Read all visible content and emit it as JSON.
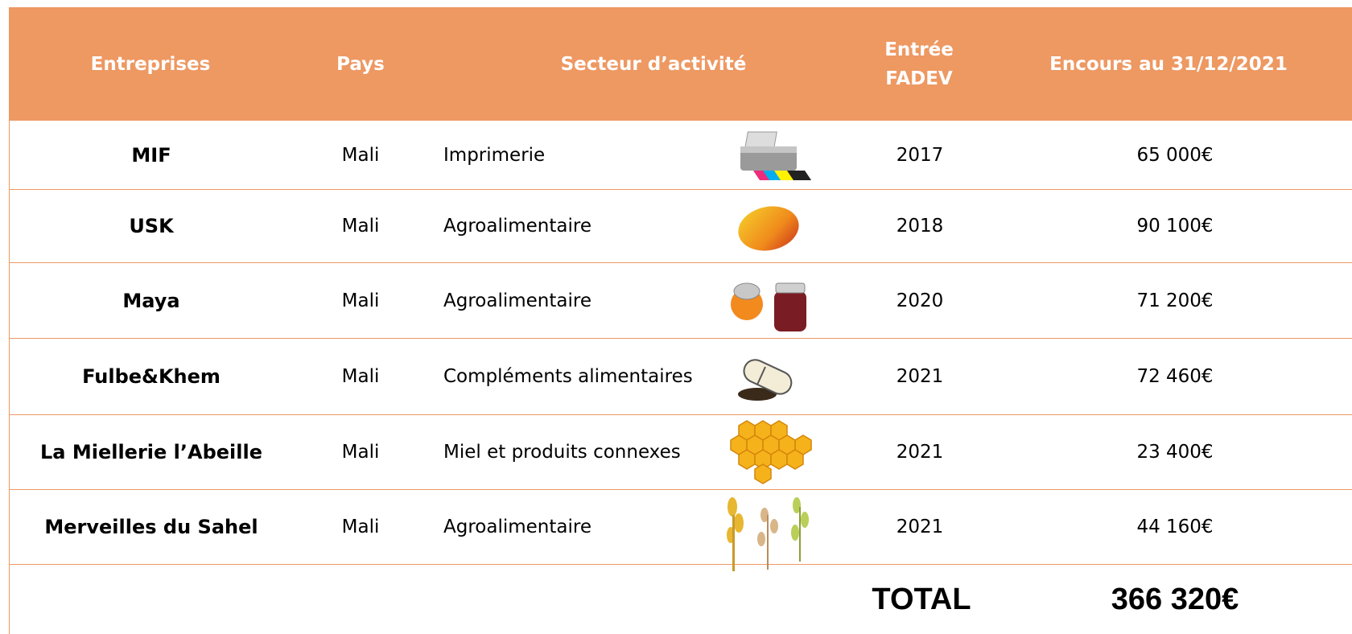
{
  "table": {
    "header": [
      "Entreprises",
      "Pays",
      "Secteur d’activité",
      "Entrée FADEV",
      "Encours au 31/12/2021"
    ],
    "rows": [
      [
        "MIF",
        "Mali",
        "Imprimerie",
        "2017",
        "65 000€"
      ],
      [
        "USK",
        "Mali",
        "Agroalimentaire",
        "2018",
        "90 100€"
      ],
      [
        "Maya",
        "Mali",
        "Agroalimentaire",
        "2020",
        "71 200€"
      ],
      [
        "Fulbe&Khem",
        "Mali",
        "Compléments alimentaires",
        "2021",
        "72 460€"
      ],
      [
        "La Miellerie l’Abeille",
        "Mali",
        "Miel et produits connexes",
        "2021",
        "23 400€"
      ],
      [
        "Merveilles du Sahel",
        "Mali",
        "Agroalimentaire",
        "2021",
        "44 160€"
      ]
    ],
    "total_label": "TOTAL",
    "total_value": "366 320€"
  }
}
